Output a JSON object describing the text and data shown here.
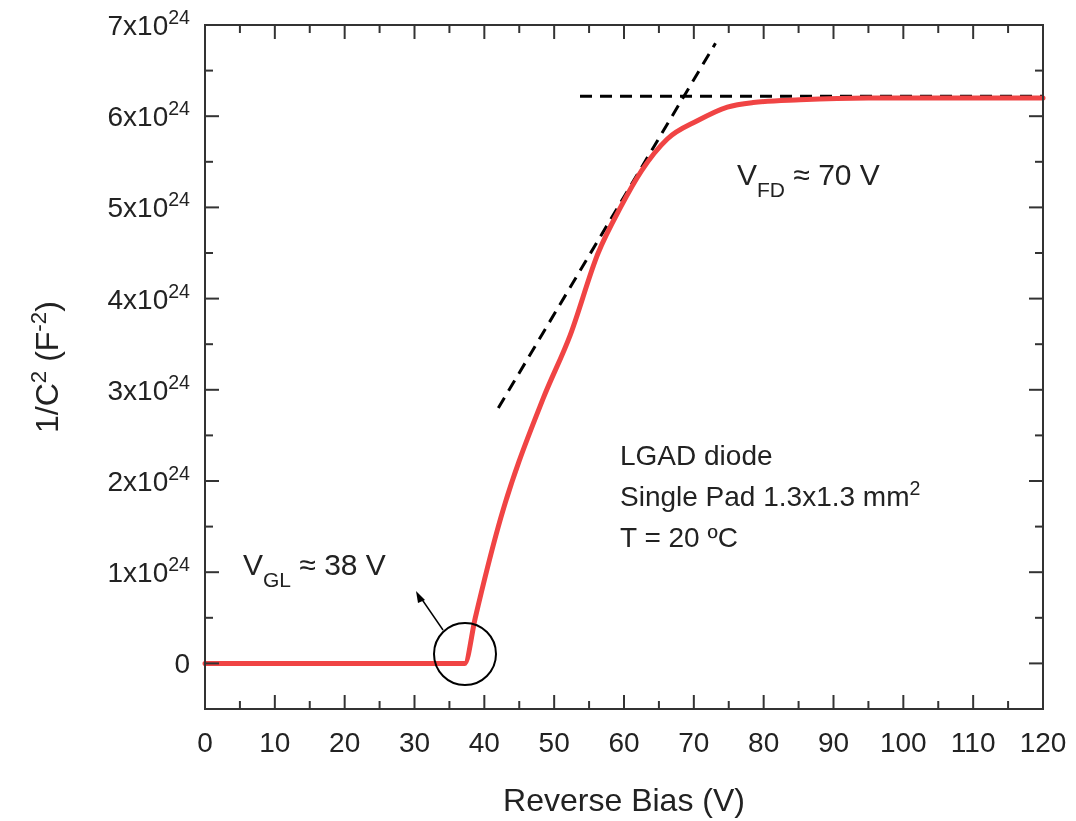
{
  "chart_data": {
    "type": "line",
    "xlabel": "Reverse Bias (V)",
    "ylabel": "1/C$^{2}$ (F$^{-2}$)",
    "xlim": [
      0,
      120
    ],
    "ylim": [
      -5e+23,
      7e+24
    ],
    "xticks": [
      0,
      {
        "value": 5,
        "label": null
      },
      10,
      {
        "value": 15,
        "label": null
      },
      20,
      {
        "value": 25,
        "label": null
      },
      30,
      {
        "value": 35,
        "label": null
      },
      40,
      {
        "value": 45,
        "label": null
      },
      50,
      {
        "value": 55,
        "label": null
      },
      60,
      {
        "value": 65,
        "label": null
      },
      70,
      {
        "value": 75,
        "label": null
      },
      80,
      {
        "value": 85,
        "label": null
      },
      90,
      {
        "value": 95,
        "label": null
      },
      100,
      {
        "value": 105,
        "label": null
      },
      110,
      {
        "value": 115,
        "label": null
      },
      120
    ],
    "yticks": [
      0,
      {
        "value": 5e+23,
        "label": null
      },
      {
        "value": 1e+24,
        "label": "1x10$^{24}$"
      },
      {
        "value": 1.5e+24,
        "label": null
      },
      {
        "value": 2e+24,
        "label": "2x10$^{24}$"
      },
      {
        "value": 2.5e+24,
        "label": null
      },
      {
        "value": 3e+24,
        "label": "3x10$^{24}$"
      },
      {
        "value": 3.5e+24,
        "label": null
      },
      {
        "value": 4e+24,
        "label": "4x10$^{24}$"
      },
      {
        "value": 4.5e+24,
        "label": null
      },
      {
        "value": 5e+24,
        "label": "5x10$^{24}$"
      },
      {
        "value": 5.5e+24,
        "label": null
      },
      {
        "value": 6e+24,
        "label": "6x10$^{24}$"
      },
      {
        "value": 6.5e+24,
        "label": null
      },
      {
        "value": 7e+24,
        "label": "7x10$^{24}$"
      }
    ],
    "series": [
      {
        "color": "#f04444",
        "line_style": "solid",
        "x": [
          0,
          10,
          20,
          30,
          37.2,
          38.7,
          42.0,
          48.4,
          52.3,
          56.3,
          59.5,
          62.5,
          66.2,
          70.5,
          74.8,
          78.5,
          85.2,
          95,
          105,
          120
        ],
        "values": [
          0,
          0,
          0,
          0,
          0,
          5e+23,
          1.5e+24,
          2.9e+24,
          3.6e+24,
          4.5e+24,
          5e+24,
          5.4e+24,
          5.75e+24,
          5.95e+24,
          6.1e+24,
          6.15e+24,
          6.18e+24,
          6.2e+24,
          6.2e+24,
          6.2e+24
        ]
      },
      {
        "color": "#000000",
        "line_style": "dashed",
        "x": [
          42.0,
          73.1
        ],
        "values": [
          2.8e+24,
          6.8e+24
        ]
      },
      {
        "color": "#000000",
        "line_style": "dashed",
        "x": [
          53.7,
          120
        ],
        "values": [
          6.22e+24,
          6.22e+24
        ]
      }
    ],
    "annotations": [
      "V$_{GL}$ ≈ 38 V",
      "V$_{FD}$ ≈ 70 V",
      "LGAD diode",
      "Single Pad 1.3x1.3 mm$^{2}$",
      "T = 20 ºC"
    ]
  }
}
